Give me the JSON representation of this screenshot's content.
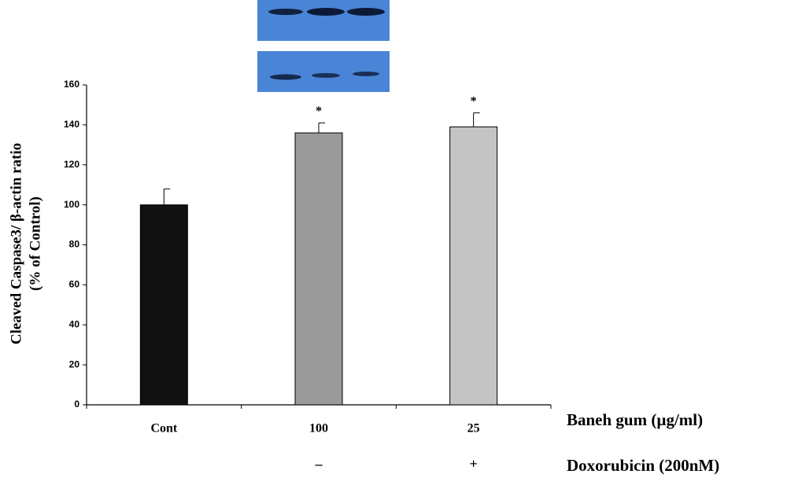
{
  "chart_data": {
    "type": "bar",
    "y_label": [
      "Cleaved Caspase3/ β-actin ratio",
      "(% of Control)"
    ],
    "x_label": "Baneh gum (µg/ml)",
    "x_label2": "Doxorubicin (200nM)",
    "categories": [
      "Cont",
      "100",
      "25"
    ],
    "doxorubicin": [
      null,
      "–",
      "+"
    ],
    "values": [
      100,
      136,
      139
    ],
    "errors": [
      8,
      5,
      7
    ],
    "significance": [
      null,
      "*",
      "*"
    ],
    "colors": [
      "#111111",
      "#9a9a9a",
      "#c4c4c4"
    ],
    "ylim": [
      0,
      160
    ],
    "yticks": [
      0,
      20,
      40,
      60,
      80,
      100,
      120,
      140,
      160
    ]
  }
}
